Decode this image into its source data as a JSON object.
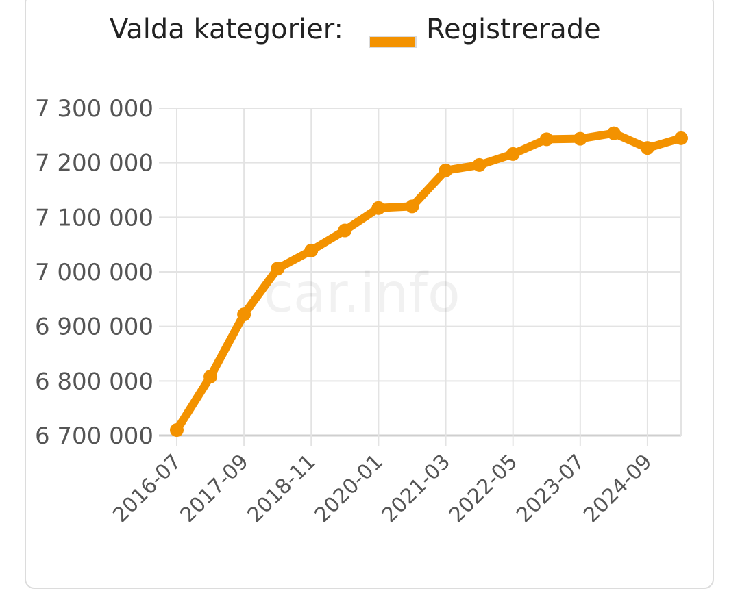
{
  "legend": {
    "title": "Valda kategorier:",
    "series_label": "Registrerade"
  },
  "watermark": "car.info",
  "colors": {
    "line": "#f39200",
    "grid": "#e3e3e3",
    "axis": "#cfcfcf"
  },
  "chart_data": {
    "type": "line",
    "x": [
      "2016-07",
      "2017-01",
      "2017-09",
      "2018-03",
      "2018-11",
      "2019-05",
      "2020-01",
      "2020-07",
      "2021-03",
      "2021-09",
      "2022-05",
      "2022-11",
      "2023-07",
      "2024-01",
      "2024-09",
      "2025-03"
    ],
    "x_tick_labels": [
      "2016-07",
      "2017-09",
      "2018-11",
      "2020-01",
      "2021-03",
      "2022-05",
      "2023-07",
      "2024-09"
    ],
    "series": [
      {
        "name": "Registrerade",
        "values": [
          6710000,
          6808000,
          6922000,
          7006000,
          7039000,
          7076000,
          7117000,
          7120000,
          7186000,
          7196000,
          7216000,
          7243000,
          7244000,
          7254000,
          7227000,
          7245000
        ]
      }
    ],
    "y_ticks": [
      6700000,
      6800000,
      6900000,
      7000000,
      7100000,
      7200000,
      7300000
    ],
    "y_tick_labels": [
      "6 700 000",
      "6 800 000",
      "6 900 000",
      "7 000 000",
      "7 100 000",
      "7 200 000",
      "7 300 000"
    ],
    "ylim": [
      6700000,
      7300000
    ],
    "grid": true,
    "legend_position": "top"
  }
}
